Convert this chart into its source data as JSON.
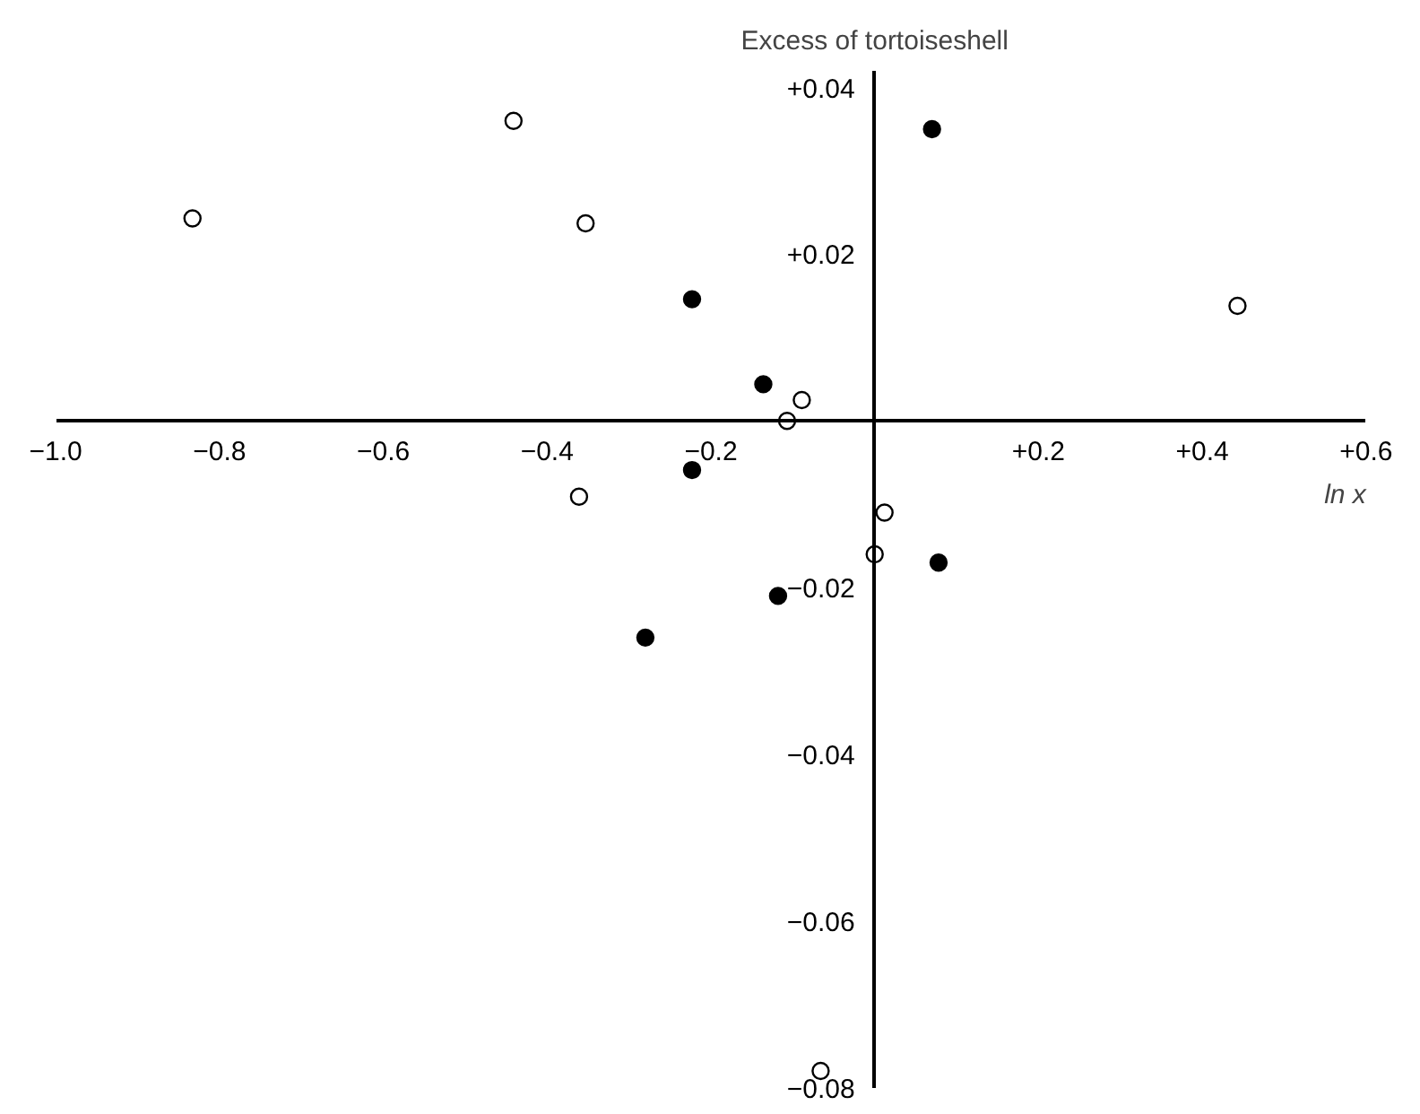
{
  "chart_data": {
    "type": "scatter",
    "xlabel": "ln x",
    "ylabel": "Excess of tortoiseshell",
    "xlim": [
      -1.0,
      0.6
    ],
    "ylim": [
      -0.08,
      0.042
    ],
    "xticks": [
      {
        "value": -1.0,
        "label": "−1.0"
      },
      {
        "value": -0.8,
        "label": "−0.8"
      },
      {
        "value": -0.6,
        "label": "−0.6"
      },
      {
        "value": -0.4,
        "label": "−0.4"
      },
      {
        "value": -0.2,
        "label": "−0.2"
      },
      {
        "value": 0.2,
        "label": "+0.2"
      },
      {
        "value": 0.4,
        "label": "+0.4"
      },
      {
        "value": 0.6,
        "label": "+0.6"
      }
    ],
    "yticks": [
      {
        "value": 0.04,
        "label": "+0.04"
      },
      {
        "value": 0.02,
        "label": "+0.02"
      },
      {
        "value": -0.02,
        "label": "−0.02"
      },
      {
        "value": -0.04,
        "label": "−0.04"
      },
      {
        "value": -0.06,
        "label": "−0.06"
      },
      {
        "value": -0.08,
        "label": "−0.08"
      }
    ],
    "grid": false,
    "marker": "circle",
    "series": [
      {
        "color": "#ffffff",
        "x": [
          -0.833,
          -0.441,
          -0.353,
          0.443,
          -0.089,
          -0.107,
          -0.361,
          0.012,
          0.0,
          -0.066
        ],
        "values": [
          0.0243,
          0.036,
          0.0237,
          0.0138,
          0.0025,
          0.0,
          -0.0091,
          -0.011,
          -0.016,
          -0.078
        ]
      },
      {
        "color": "#000000",
        "x": [
          0.07,
          -0.223,
          -0.136,
          -0.223,
          0.078,
          -0.118,
          -0.28
        ],
        "values": [
          0.035,
          0.0146,
          0.0044,
          -0.0059,
          -0.017,
          -0.021,
          -0.026
        ]
      }
    ]
  }
}
